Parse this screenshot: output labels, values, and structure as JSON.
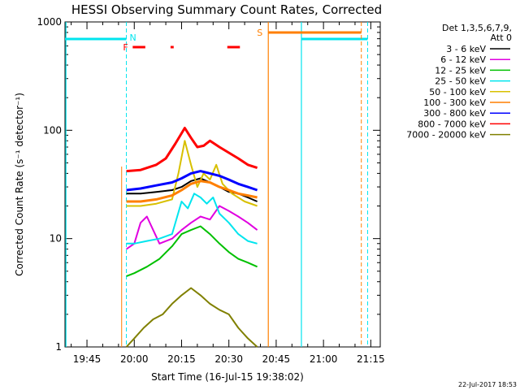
{
  "chart_data": {
    "type": "line",
    "title": "HESSI Observing Summary Count Rates, Corrected",
    "xlabel": "Start Time (16-Jul-15 19:38:02)",
    "ylabel": "Corrected Count Rate (s⁻¹ detector⁻¹)",
    "y_scale": "log",
    "ylim": [
      1,
      1000
    ],
    "xlim": [
      "19:38:02",
      "21:18:00"
    ],
    "x_ticks": [
      "19:45",
      "20:00",
      "20:15",
      "20:30",
      "20:45",
      "21:00",
      "21:15"
    ],
    "y_ticks": [
      "1",
      "10",
      "100",
      "1000"
    ],
    "legend_header": [
      "Det 1,3,5,6,7,9,",
      "Att 0"
    ],
    "legend_position": "right",
    "timestamp": "22-Jul-2017 18:53",
    "flags": {
      "night_label": "N",
      "flare_label": "F",
      "saa_label": "S"
    },
    "series": [
      {
        "name": "3 - 6 keV",
        "color": "#000000",
        "x": [
          "19:57:30",
          "20:02",
          "20:07",
          "20:12",
          "20:15",
          "20:18",
          "20:21",
          "20:24",
          "20:27",
          "20:30",
          "20:33",
          "20:36",
          "20:39"
        ],
        "values": [
          26,
          26,
          27,
          28,
          30,
          34,
          36,
          33,
          30,
          27,
          26,
          24,
          22
        ]
      },
      {
        "name": "6 - 12 keV",
        "color": "#e000e0",
        "x": [
          "19:57:30",
          "20:00",
          "20:02",
          "20:04",
          "20:06",
          "20:08",
          "20:12",
          "20:15",
          "20:18",
          "20:21",
          "20:24",
          "20:27",
          "20:30",
          "20:33",
          "20:36",
          "20:39"
        ],
        "values": [
          8,
          9,
          14,
          16,
          12,
          9,
          10,
          12,
          14,
          16,
          15,
          20,
          18,
          16,
          14,
          12
        ]
      },
      {
        "name": "12 - 25 keV",
        "color": "#00c000",
        "x": [
          "19:57:30",
          "20:00",
          "20:04",
          "20:08",
          "20:12",
          "20:15",
          "20:18",
          "20:21",
          "20:24",
          "20:27",
          "20:30",
          "20:33",
          "20:36",
          "20:39"
        ],
        "values": [
          4.5,
          4.8,
          5.5,
          6.5,
          8.5,
          11,
          12,
          13,
          11,
          9,
          7.5,
          6.5,
          6,
          5.5
        ]
      },
      {
        "name": "25 - 50 keV",
        "color": "#00e5ee",
        "x": [
          "19:57:30",
          "20:00",
          "20:04",
          "20:08",
          "20:12",
          "20:15",
          "20:17",
          "20:19",
          "20:21",
          "20:23",
          "20:25",
          "20:27",
          "20:30",
          "20:33",
          "20:36",
          "20:39"
        ],
        "values": [
          9,
          9,
          9.5,
          10,
          11,
          22,
          19,
          26,
          24,
          21,
          24,
          17,
          14,
          11,
          9.5,
          9
        ]
      },
      {
        "name": "50 - 100 keV",
        "color": "#d8c000",
        "x": [
          "19:57:30",
          "20:02",
          "20:07",
          "20:12",
          "20:14",
          "20:16",
          "20:18",
          "20:20",
          "20:22",
          "20:24",
          "20:26",
          "20:28",
          "20:31",
          "20:35",
          "20:39"
        ],
        "values": [
          20,
          20,
          21,
          23,
          40,
          80,
          48,
          30,
          40,
          35,
          48,
          32,
          26,
          22,
          20
        ]
      },
      {
        "name": "100 - 300 keV",
        "color": "#ff7f00",
        "x": [
          "19:57:30",
          "20:02",
          "20:07",
          "20:12",
          "20:15",
          "20:18",
          "20:21",
          "20:24",
          "20:27",
          "20:30",
          "20:33",
          "20:36",
          "20:39"
        ],
        "values": [
          22,
          22,
          23,
          25,
          28,
          32,
          34,
          33,
          30,
          28,
          26,
          25,
          24
        ]
      },
      {
        "name": "300 - 800 keV",
        "color": "#0000ff",
        "x": [
          "19:57:30",
          "20:02",
          "20:07",
          "20:12",
          "20:15",
          "20:18",
          "20:21",
          "20:24",
          "20:27",
          "20:30",
          "20:33",
          "20:36",
          "20:39"
        ],
        "values": [
          28,
          29,
          31,
          33,
          36,
          40,
          42,
          40,
          38,
          35,
          32,
          30,
          28
        ]
      },
      {
        "name": "800 - 7000 keV",
        "color": "#ff0000",
        "x": [
          "19:57:30",
          "20:02",
          "20:07",
          "20:10",
          "20:13",
          "20:16",
          "20:18",
          "20:20",
          "20:22",
          "20:24",
          "20:27",
          "20:30",
          "20:33",
          "20:36",
          "20:39"
        ],
        "values": [
          42,
          43,
          48,
          55,
          75,
          105,
          85,
          70,
          72,
          80,
          70,
          62,
          55,
          48,
          45
        ]
      },
      {
        "name": "7000 - 20000 keV",
        "color": "#808000",
        "x": [
          "19:57:30",
          "20:00",
          "20:03",
          "20:06",
          "20:09",
          "20:12",
          "20:15",
          "20:18",
          "20:21",
          "20:24",
          "20:27",
          "20:30",
          "20:33",
          "20:36",
          "20:39"
        ],
        "values": [
          1,
          1.2,
          1.5,
          1.8,
          2.0,
          2.5,
          3.0,
          3.5,
          3.0,
          2.5,
          2.2,
          2.0,
          1.5,
          1.2,
          1
        ]
      }
    ]
  }
}
